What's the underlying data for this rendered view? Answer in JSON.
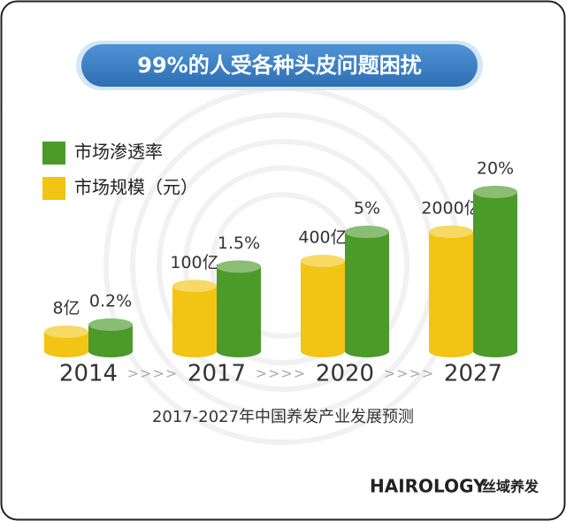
{
  "chart_data": {
    "type": "bar",
    "title": "99%的人受各种头皮问题困扰",
    "subtitle": "2017-2027年中国养发产业发展预测",
    "categories": [
      "2014",
      "2017",
      "2020",
      "2027"
    ],
    "separator": ">>>>",
    "log_scale": true,
    "series": [
      {
        "name": "市场规模（元）",
        "color": "#f2c414",
        "values": [
          8,
          100,
          400,
          2000
        ],
        "value_labels": [
          "8亿",
          "100亿",
          "400亿",
          "2000亿"
        ]
      },
      {
        "name": "市场渗透率",
        "color": "#4c9a2a",
        "values": [
          0.2,
          1.5,
          5,
          20
        ],
        "value_labels": [
          "0.2%",
          "1.5%",
          "5%",
          "20%"
        ]
      }
    ],
    "brand": "HAIROLOGY",
    "brand_cn": "丝域养发"
  }
}
